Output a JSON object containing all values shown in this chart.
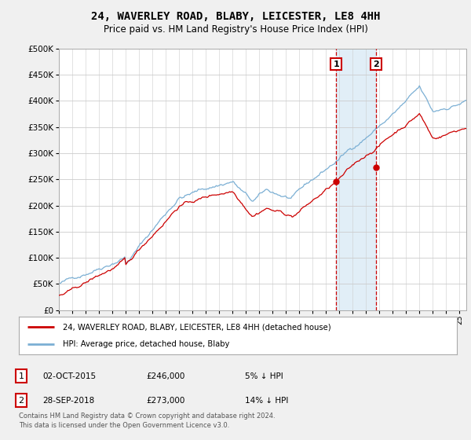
{
  "title": "24, WAVERLEY ROAD, BLABY, LEICESTER, LE8 4HH",
  "subtitle": "Price paid vs. HM Land Registry's House Price Index (HPI)",
  "ytick_values": [
    0,
    50000,
    100000,
    150000,
    200000,
    250000,
    300000,
    350000,
    400000,
    450000,
    500000
  ],
  "hpi_color": "#7bafd4",
  "price_color": "#cc0000",
  "bg_color": "#f0f0f0",
  "plot_bg": "#ffffff",
  "grid_color": "#cccccc",
  "shade_color": "#daeaf5",
  "purchase1_year": 2015.75,
  "purchase2_year": 2018.75,
  "purchase1_price": 246000,
  "purchase2_price": 273000,
  "legend_label1": "24, WAVERLEY ROAD, BLABY, LEICESTER, LE8 4HH (detached house)",
  "legend_label2": "HPI: Average price, detached house, Blaby",
  "table_row1_num": "1",
  "table_row1_date": "02-OCT-2015",
  "table_row1_price": "£246,000",
  "table_row1_hpi": "5% ↓ HPI",
  "table_row2_num": "2",
  "table_row2_date": "28-SEP-2018",
  "table_row2_price": "£273,000",
  "table_row2_hpi": "14% ↓ HPI",
  "footer": "Contains HM Land Registry data © Crown copyright and database right 2024.\nThis data is licensed under the Open Government Licence v3.0.",
  "xmin": 1995,
  "xmax": 2025.5,
  "ylim_max": 500000
}
